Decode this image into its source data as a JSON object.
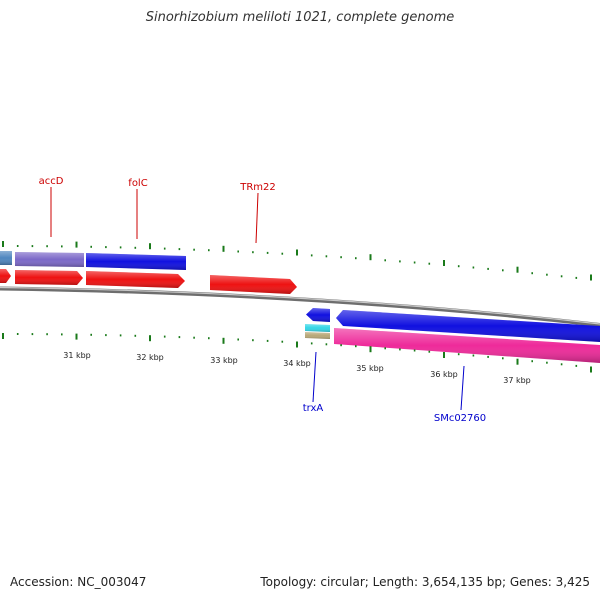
{
  "title": "Sinorhizobium meliloti 1021, complete genome",
  "footer": {
    "accession": "Accession: NC_003047",
    "summary": "Topology: circular; Length: 3,654,135 bp; Genes: 3,425"
  },
  "colors": {
    "backbone": "#8a8a8a",
    "tick": "#1a7a1a",
    "forward_label": "#cc0000",
    "reverse_label": "#0000cc"
  },
  "scale_labels": [
    "31 kbp",
    "32 kbp",
    "33 kbp",
    "34 kbp",
    "35 kbp",
    "36 kbp",
    "37 kbp"
  ],
  "gene_labels": [
    {
      "text": "accD",
      "strand": "forward"
    },
    {
      "text": "folC",
      "strand": "forward"
    },
    {
      "text": "TRm22",
      "strand": "forward"
    },
    {
      "text": "trxA",
      "strand": "reverse"
    },
    {
      "text": "SMc02760",
      "strand": "reverse"
    }
  ],
  "features": [
    {
      "id": "f-blue-left",
      "color": "#4f86bf"
    },
    {
      "id": "f-accd-gene",
      "color": "#7b68c8"
    },
    {
      "id": "f-folc-gene",
      "color": "#1010e0"
    },
    {
      "id": "f-red-left",
      "color": "#ee1111"
    },
    {
      "id": "f-accd-cds",
      "color": "#ee1111"
    },
    {
      "id": "f-folc-cds",
      "color": "#ee1111"
    },
    {
      "id": "f-trm22",
      "color": "#ee1111"
    },
    {
      "id": "f-trxa-gene",
      "color": "#1010e0"
    },
    {
      "id": "f-trxa-cyan",
      "color": "#33d6e6"
    },
    {
      "id": "f-trxa-tan",
      "color": "#b8a878"
    },
    {
      "id": "f-smc-gene",
      "color": "#1010e0"
    },
    {
      "id": "f-smc-cds",
      "color": "#ee2a9a"
    }
  ]
}
